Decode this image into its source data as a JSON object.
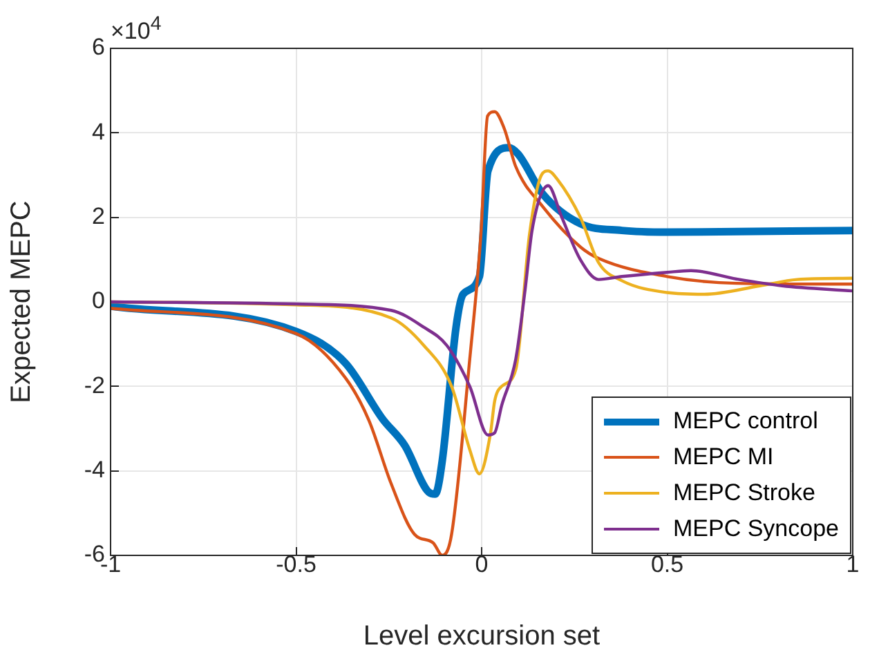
{
  "chart_data": {
    "type": "line",
    "xlabel": "Level excursion set",
    "ylabel": "Expected MEPC",
    "annotations": [
      "×10$^{4}$"
    ],
    "xlim": [
      -1,
      1
    ],
    "xticks": [
      -1,
      -0.5,
      0,
      0.5,
      1
    ],
    "ylim": [
      -6,
      6
    ],
    "yticks": [
      -6,
      -4,
      -2,
      0,
      2,
      4,
      6
    ],
    "grid": true,
    "legend": "bottom right",
    "marker": "none",
    "line_style": "solid",
    "series": [
      {
        "name": "MEPC control",
        "color": "#0072bd",
        "x": [
          -1,
          -0.5,
          -0.367,
          -0.267,
          -0.207,
          -0.143,
          -0.125,
          -0.106,
          -0.069,
          -0.05,
          -0.006,
          0.017,
          0.073,
          0.098,
          0.165,
          0.266,
          0.378,
          0.5,
          1
        ],
        "values": [
          -0.1,
          -0.7,
          -1.45,
          -2.77,
          -3.4,
          -4.5,
          -4.55,
          -3.75,
          -0.6,
          0.18,
          0.6,
          3.1,
          3.65,
          3.5,
          2.55,
          1.85,
          1.69,
          1.65,
          1.69
        ]
      },
      {
        "name": "MEPC MI",
        "color": "#d95319",
        "x": [
          -1,
          -0.5,
          -0.367,
          -0.304,
          -0.244,
          -0.181,
          -0.131,
          -0.106,
          -0.081,
          -0.032,
          -0.002,
          0.016,
          0.035,
          0.061,
          0.092,
          0.165,
          0.266,
          0.315,
          0.5,
          0.687,
          1
        ],
        "values": [
          -0.15,
          -0.75,
          -1.8,
          -2.8,
          -4.3,
          -5.5,
          -5.7,
          -6.0,
          -5.5,
          -1.35,
          1.6,
          4.4,
          4.5,
          4.1,
          3.2,
          2.25,
          1.3,
          1.03,
          0.6,
          0.44,
          0.42
        ]
      },
      {
        "name": "MEPC Stroke",
        "color": "#edb120",
        "x": [
          -1,
          -0.5,
          -0.244,
          -0.156,
          -0.081,
          -0.032,
          -0.006,
          0.024,
          0.035,
          0.054,
          0.092,
          0.129,
          0.161,
          0.179,
          0.204,
          0.266,
          0.315,
          0.378,
          0.5,
          0.6,
          0.75,
          0.85,
          1
        ],
        "values": [
          0,
          -0.07,
          -0.38,
          -1.03,
          -2.0,
          -3.5,
          -4.07,
          -3.1,
          -2.35,
          -2.0,
          -1.6,
          1.6,
          3.0,
          3.1,
          2.9,
          2.0,
          0.93,
          0.5,
          0.22,
          0.18,
          0.38,
          0.53,
          0.56
        ]
      },
      {
        "name": "MEPC Syncope",
        "color": "#7e2f8e",
        "x": [
          -1,
          -0.5,
          -0.244,
          -0.156,
          -0.094,
          -0.032,
          0.017,
          0.035,
          0.054,
          0.092,
          0.117,
          0.136,
          0.179,
          0.216,
          0.266,
          0.315,
          0.378,
          0.5,
          0.564,
          0.687,
          0.81,
          1
        ],
        "values": [
          0,
          -0.05,
          -0.2,
          -0.6,
          -1.03,
          -2.0,
          -3.15,
          -3.1,
          -2.45,
          -1.35,
          0.28,
          1.7,
          2.75,
          2.0,
          1.0,
          0.53,
          0.6,
          0.7,
          0.74,
          0.54,
          0.38,
          0.26
        ]
      }
    ]
  }
}
